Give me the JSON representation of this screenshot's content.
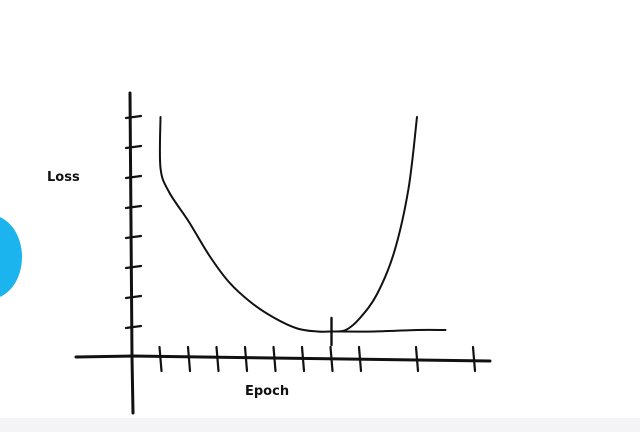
{
  "colors": {
    "ink": "#111111",
    "accent": "#1bb4ef",
    "background": "#ffffff"
  },
  "chart_data": {
    "type": "line",
    "title": "",
    "xlabel": "Epoch",
    "ylabel": "Loss",
    "xlim": [
      0,
      12
    ],
    "ylim": [
      0,
      8
    ],
    "x_ticks": [
      1,
      2,
      3,
      4,
      5,
      6,
      7,
      8,
      10,
      12
    ],
    "y_ticks": [
      1,
      2,
      3,
      4,
      5,
      6,
      7,
      8
    ],
    "grid": false,
    "legend": "none",
    "series": [
      {
        "x": [
          1.0,
          1.0,
          1.3,
          2.0,
          2.7,
          3.4,
          4.2,
          5.0,
          5.8,
          6.5,
          7.0,
          7.5,
          8.0,
          8.6,
          9.2,
          9.7,
          10.0
        ],
        "y": [
          8.0,
          6.3,
          5.5,
          4.5,
          3.4,
          2.5,
          1.8,
          1.3,
          0.95,
          0.85,
          0.85,
          0.9,
          1.3,
          2.1,
          3.5,
          5.6,
          8.0
        ]
      },
      {
        "x": [
          7.0,
          8.5,
          10.0,
          11.0
        ],
        "y": [
          0.85,
          0.85,
          0.9,
          0.9
        ]
      }
    ],
    "annotations": [
      {
        "type": "vertical-marker",
        "x": 7.0,
        "y_from": 0.4,
        "y_to": 1.3
      }
    ]
  }
}
